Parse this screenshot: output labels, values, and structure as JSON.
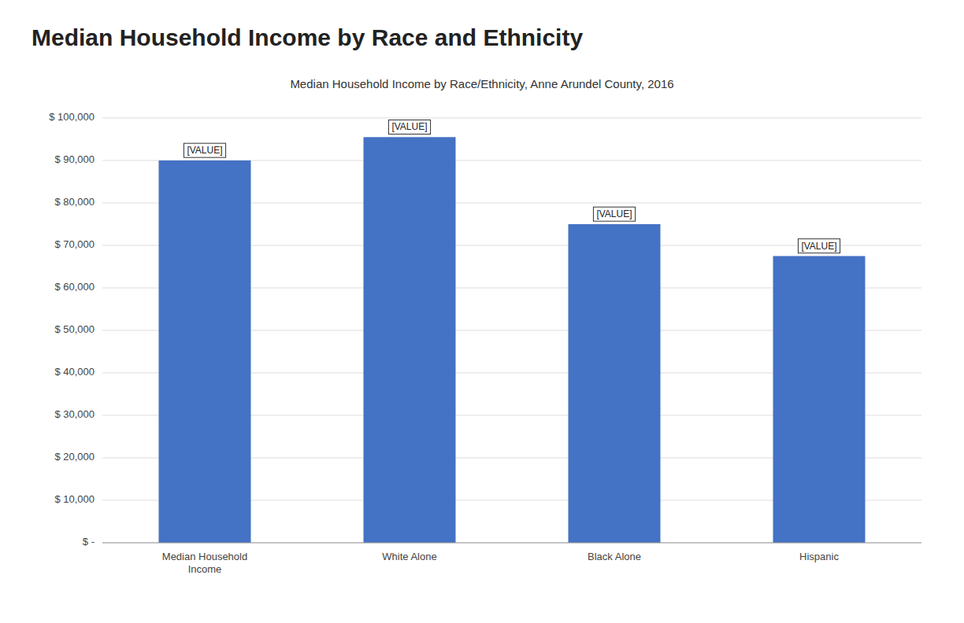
{
  "chart_data": {
    "type": "bar",
    "title": "Median Household Income by Race and Ethnicity",
    "subtitle": "Median Household Income by Race/Ethnicity, Anne Arundel County, 2016",
    "categories": [
      "Median Household\nIncome",
      "White Alone",
      "Black Alone",
      "Hispanic"
    ],
    "values": [
      90000,
      95500,
      75000,
      67500
    ],
    "value_labels": [
      "[VALUE]",
      "[VALUE]",
      "[VALUE]",
      "[VALUE]"
    ],
    "data_labels": true,
    "color": "#4472C4",
    "ylim": [
      0,
      100000
    ],
    "yticks": [
      {
        "value": 0,
        "label": "$ -"
      },
      {
        "value": 10000,
        "label": "$ 10,000"
      },
      {
        "value": 20000,
        "label": "$ 20,000"
      },
      {
        "value": 30000,
        "label": "$ 30,000"
      },
      {
        "value": 40000,
        "label": "$ 40,000"
      },
      {
        "value": 50000,
        "label": "$ 50,000"
      },
      {
        "value": 60000,
        "label": "$ 60,000"
      },
      {
        "value": 70000,
        "label": "$ 70,000"
      },
      {
        "value": 80000,
        "label": "$ 80,000"
      },
      {
        "value": 90000,
        "label": "$ 90,000"
      },
      {
        "value": 100000,
        "label": "$ 100,000"
      }
    ],
    "grid": true
  }
}
